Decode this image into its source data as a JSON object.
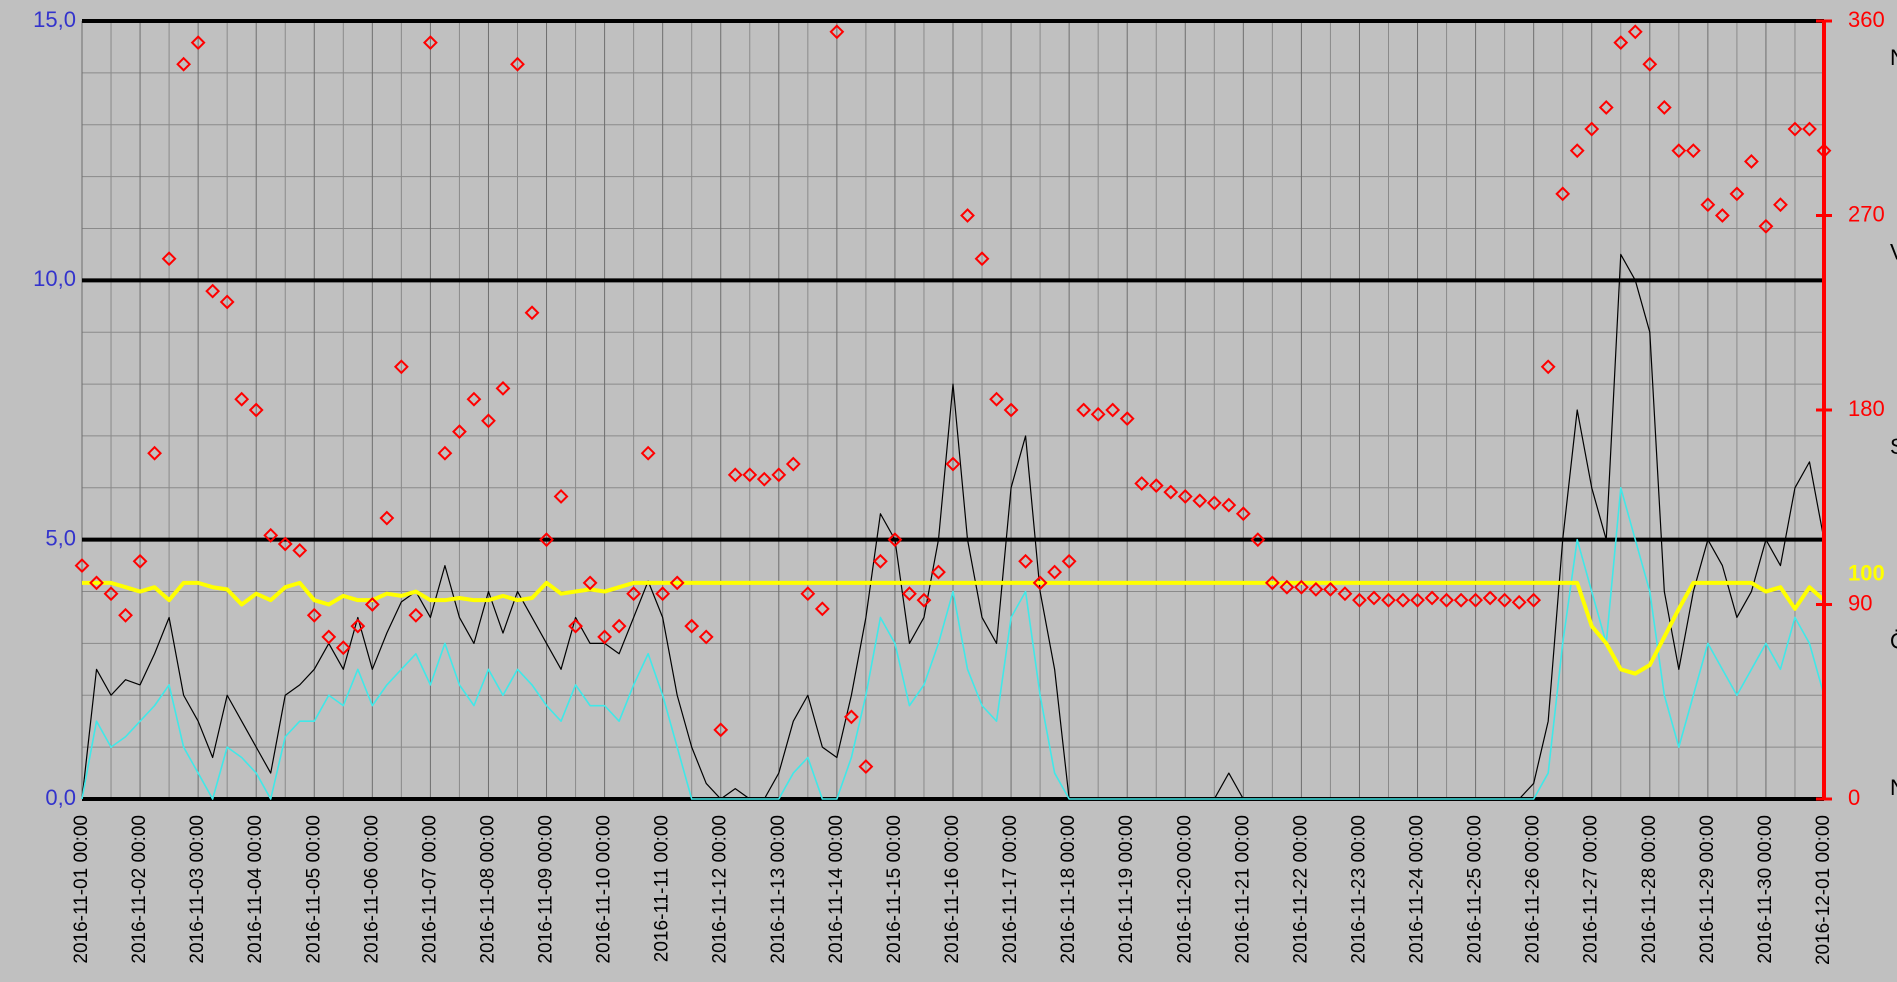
{
  "chart_data": {
    "type": "combo",
    "xlim": [
      0,
      720
    ],
    "x": [
      0,
      6,
      12,
      18,
      24,
      30,
      36,
      42,
      48,
      54,
      60,
      66,
      72,
      78,
      84,
      90,
      96,
      102,
      108,
      114,
      120,
      126,
      132,
      138,
      144,
      150,
      156,
      162,
      168,
      174,
      180,
      186,
      192,
      198,
      204,
      210,
      216,
      222,
      228,
      234,
      240,
      246,
      252,
      258,
      264,
      270,
      276,
      282,
      288,
      294,
      300,
      306,
      312,
      318,
      324,
      330,
      336,
      342,
      348,
      354,
      360,
      366,
      372,
      378,
      384,
      390,
      396,
      402,
      408,
      414,
      420,
      426,
      432,
      438,
      444,
      450,
      456,
      462,
      468,
      474,
      480,
      486,
      492,
      498,
      504,
      510,
      516,
      522,
      528,
      534,
      540,
      546,
      552,
      558,
      564,
      570,
      576,
      582,
      588,
      594,
      600,
      606,
      612,
      618,
      624,
      630,
      636,
      642,
      648,
      654,
      660,
      666,
      672,
      678,
      684,
      690,
      696,
      702,
      708,
      714,
      720
    ],
    "xticks": [
      {
        "value": 0,
        "label": "2016-11-01 00:00"
      },
      {
        "value": 24,
        "label": "2016-11-02 00:00"
      },
      {
        "value": 48,
        "label": "2016-11-03 00:00"
      },
      {
        "value": 72,
        "label": "2016-11-04 00:00"
      },
      {
        "value": 96,
        "label": "2016-11-05 00:00"
      },
      {
        "value": 120,
        "label": "2016-11-06 00:00"
      },
      {
        "value": 144,
        "label": "2016-11-07 00:00"
      },
      {
        "value": 168,
        "label": "2016-11-08 00:00"
      },
      {
        "value": 192,
        "label": "2016-11-09 00:00"
      },
      {
        "value": 216,
        "label": "2016-11-10 00:00"
      },
      {
        "value": 240,
        "label": "2016-11-11 00:00"
      },
      {
        "value": 264,
        "label": "2016-11-12 00:00"
      },
      {
        "value": 288,
        "label": "2016-11-13 00:00"
      },
      {
        "value": 312,
        "label": "2016-11-14 00:00"
      },
      {
        "value": 336,
        "label": "2016-11-15 00:00"
      },
      {
        "value": 360,
        "label": "2016-11-16 00:00"
      },
      {
        "value": 384,
        "label": "2016-11-17 00:00"
      },
      {
        "value": 408,
        "label": "2016-11-18 00:00"
      },
      {
        "value": 432,
        "label": "2016-11-19 00:00"
      },
      {
        "value": 456,
        "label": "2016-11-20 00:00"
      },
      {
        "value": 480,
        "label": "2016-11-21 00:00"
      },
      {
        "value": 504,
        "label": "2016-11-22 00:00"
      },
      {
        "value": 528,
        "label": "2016-11-23 00:00"
      },
      {
        "value": 552,
        "label": "2016-11-24 00:00"
      },
      {
        "value": 576,
        "label": "2016-11-25 00:00"
      },
      {
        "value": 600,
        "label": "2016-11-26 00:00"
      },
      {
        "value": 624,
        "label": "2016-11-27 00:00"
      },
      {
        "value": 648,
        "label": "2016-11-28 00:00"
      },
      {
        "value": 672,
        "label": "2016-11-29 00:00"
      },
      {
        "value": 696,
        "label": "2016-11-30 00:00"
      },
      {
        "value": 720,
        "label": "2016-12-01 00:00"
      }
    ],
    "minor_xticks": [
      12,
      36,
      60,
      84,
      108,
      132,
      156,
      180,
      204,
      228,
      252,
      276,
      300,
      324,
      348,
      372,
      396,
      420,
      444,
      468,
      492,
      516,
      540,
      564,
      588,
      612,
      636,
      660,
      684,
      708
    ],
    "ylim": [
      0,
      15
    ],
    "yticks": [
      {
        "value": 0,
        "label": "0,0"
      },
      {
        "value": 5,
        "label": "5,0"
      },
      {
        "value": 10,
        "label": "10,0"
      },
      {
        "value": 15,
        "label": "15,0"
      }
    ],
    "minor_yticks": [
      1,
      2,
      3,
      4,
      6,
      7,
      8,
      9,
      11,
      12,
      13,
      14
    ],
    "y2lim": [
      0,
      360
    ],
    "y2ticks": [
      0,
      90,
      180,
      270,
      360
    ],
    "y2_color": "#ff0000",
    "y_label_color": "#3333cc",
    "grid": true,
    "annotations": [
      {
        "label": "100",
        "value": 100,
        "color": "#ffff00"
      }
    ],
    "compass": [
      {
        "label": "N",
        "value": 360
      },
      {
        "label": "V",
        "value": 270
      },
      {
        "label": "S",
        "value": 180
      },
      {
        "label": "Ö",
        "value": 90
      },
      {
        "label": "N",
        "value": 0
      }
    ],
    "series": [
      {
        "type": "line",
        "color": "#000000",
        "width": 1.2,
        "values": [
          0,
          2.5,
          2.0,
          2.3,
          2.2,
          2.8,
          3.5,
          2.0,
          1.5,
          0.8,
          2.0,
          1.5,
          1.0,
          0.5,
          2.0,
          2.2,
          2.5,
          3.0,
          2.5,
          3.5,
          2.5,
          3.2,
          3.8,
          4.0,
          3.5,
          4.5,
          3.5,
          3.0,
          4.0,
          3.2,
          4.0,
          3.5,
          3.0,
          2.5,
          3.5,
          3.0,
          3.0,
          2.8,
          3.5,
          4.2,
          3.5,
          2.0,
          1.0,
          0.3,
          0,
          0.2,
          0,
          0,
          0.5,
          1.5,
          2.0,
          1.0,
          0.8,
          2.0,
          3.5,
          5.5,
          5.0,
          3.0,
          3.5,
          5.0,
          8.0,
          5.0,
          3.5,
          3.0,
          6.0,
          7.0,
          4.0,
          2.5,
          0,
          0,
          0,
          0,
          0,
          0,
          0,
          0,
          0,
          0,
          0,
          0.5,
          0,
          0,
          0,
          0,
          0,
          0,
          0,
          0,
          0,
          0,
          0,
          0,
          0,
          0,
          0,
          0,
          0,
          0,
          0,
          0,
          0.3,
          1.5,
          5.0,
          7.5,
          6.0,
          5.0,
          10.5,
          10.0,
          9.0,
          4.0,
          2.5,
          4.0,
          5.0,
          4.5,
          3.5,
          4.0,
          5.0,
          4.5,
          6.0,
          6.5,
          5.0
        ]
      },
      {
        "type": "line",
        "color": "#40e8e8",
        "width": 1.6,
        "values": [
          0,
          1.5,
          1.0,
          1.2,
          1.5,
          1.8,
          2.2,
          1.0,
          0.5,
          0,
          1.0,
          0.8,
          0.5,
          0,
          1.2,
          1.5,
          1.5,
          2.0,
          1.8,
          2.5,
          1.8,
          2.2,
          2.5,
          2.8,
          2.2,
          3.0,
          2.2,
          1.8,
          2.5,
          2.0,
          2.5,
          2.2,
          1.8,
          1.5,
          2.2,
          1.8,
          1.8,
          1.5,
          2.2,
          2.8,
          2.0,
          1.0,
          0,
          0,
          0,
          0,
          0,
          0,
          0,
          0.5,
          0.8,
          0,
          0,
          0.8,
          2.0,
          3.5,
          3.0,
          1.8,
          2.2,
          3.0,
          4.0,
          2.5,
          1.8,
          1.5,
          3.5,
          4.0,
          2.0,
          0.5,
          0,
          0,
          0,
          0,
          0,
          0,
          0,
          0,
          0,
          0,
          0,
          0,
          0,
          0,
          0,
          0,
          0,
          0,
          0,
          0,
          0,
          0,
          0,
          0,
          0,
          0,
          0,
          0,
          0,
          0,
          0,
          0,
          0,
          0.5,
          3.0,
          5.0,
          4.0,
          3.0,
          6.0,
          5.0,
          4.0,
          2.0,
          1.0,
          2.0,
          3.0,
          2.5,
          2.0,
          2.5,
          3.0,
          2.5,
          3.5,
          3.0,
          2.0
        ]
      },
      {
        "type": "line",
        "axis": "y2",
        "color": "#ffff00",
        "width": 4,
        "values": [
          100,
          100,
          100,
          98,
          96,
          98,
          92,
          100,
          100,
          98,
          97,
          90,
          95,
          92,
          98,
          100,
          92,
          90,
          94,
          92,
          92,
          95,
          94,
          96,
          92,
          92,
          93,
          92,
          92,
          94,
          92,
          93,
          100,
          95,
          96,
          97,
          96,
          98,
          100,
          100,
          100,
          100,
          100,
          100,
          100,
          100,
          100,
          100,
          100,
          100,
          100,
          100,
          100,
          100,
          100,
          100,
          100,
          100,
          100,
          100,
          100,
          100,
          100,
          100,
          100,
          100,
          100,
          100,
          100,
          100,
          100,
          100,
          100,
          100,
          100,
          100,
          100,
          100,
          100,
          100,
          100,
          100,
          100,
          100,
          100,
          100,
          100,
          100,
          100,
          100,
          100,
          100,
          100,
          100,
          100,
          100,
          100,
          100,
          100,
          100,
          100,
          100,
          100,
          100,
          80,
          72,
          60,
          58,
          62,
          75,
          88,
          100,
          100,
          100,
          100,
          100,
          96,
          98,
          88,
          98,
          92
        ]
      },
      {
        "type": "scatter",
        "axis": "y2",
        "color": "#ff0000",
        "values": [
          108,
          100,
          95,
          85,
          110,
          160,
          250,
          340,
          350,
          235,
          230,
          185,
          180,
          122,
          118,
          115,
          85,
          75,
          70,
          80,
          90,
          130,
          200,
          85,
          350,
          160,
          170,
          185,
          175,
          190,
          340,
          225,
          120,
          140,
          80,
          100,
          75,
          80,
          95,
          160,
          95,
          100,
          80,
          75,
          32,
          150,
          150,
          148,
          150,
          155,
          95,
          88,
          355,
          38,
          15,
          110,
          120,
          95,
          92,
          105,
          155,
          270,
          250,
          185,
          180,
          110,
          100,
          105,
          110,
          180,
          178,
          180,
          176,
          146,
          145,
          142,
          140,
          138,
          137,
          136,
          132,
          120,
          100,
          98,
          98,
          97,
          97,
          95,
          92,
          93,
          92,
          92,
          92,
          93,
          92,
          92,
          92,
          93,
          92,
          91,
          92,
          200,
          280,
          300,
          310,
          320,
          350,
          355,
          340,
          320,
          300,
          300,
          275,
          270,
          280,
          295,
          265,
          275,
          310,
          310,
          300
        ]
      }
    ]
  }
}
